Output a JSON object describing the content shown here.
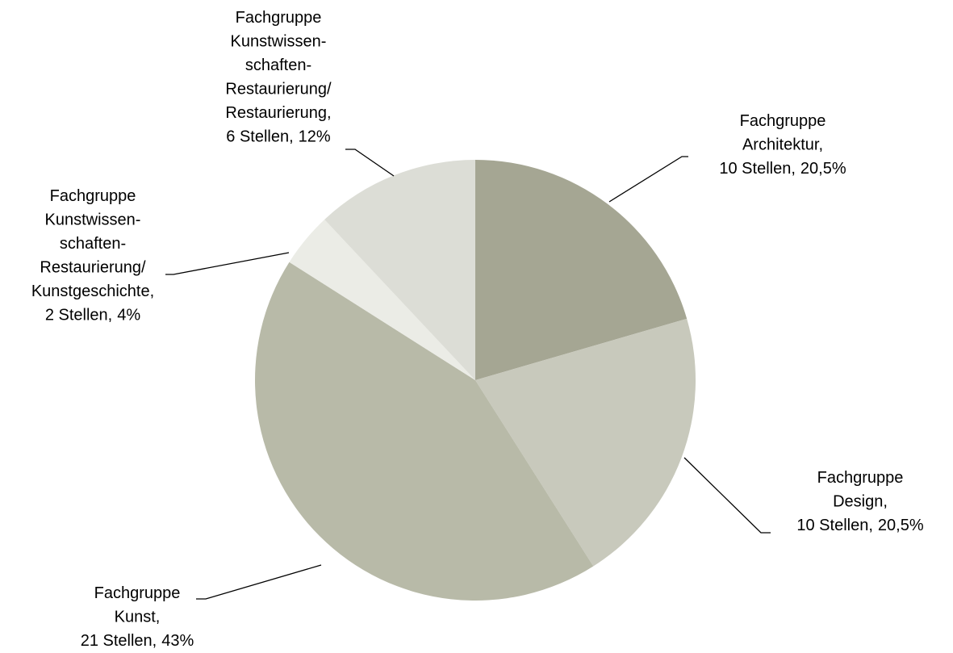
{
  "chart_data": {
    "type": "pie",
    "categories": [
      [
        "Fachgruppe",
        "Architektur,",
        "10 Stellen,"
      ],
      [
        "Fachgruppe",
        "Design,",
        "10 Stellen,"
      ],
      [
        "Fachgruppe",
        "Kunst,",
        "21 Stellen,"
      ],
      [
        "Fachgruppe",
        "Kunstwissen-",
        "schaften-",
        "Restaurierung/",
        "Kunstgeschichte,",
        "2 Stellen,"
      ],
      [
        "Fachgruppe",
        "Kunstwissen-",
        "schaften-",
        "Restaurierung/",
        "Restaurierung,",
        "6 Stellen,"
      ]
    ],
    "values": [
      20.5,
      20.5,
      43,
      4,
      12
    ],
    "value_labels": [
      "20,5%",
      "20,5%",
      "43%",
      "4%",
      "12%"
    ],
    "colors": [
      "#a5a693",
      "#c8c9bc",
      "#b8baa8",
      "#ebece6",
      "#dcddd6"
    ]
  }
}
